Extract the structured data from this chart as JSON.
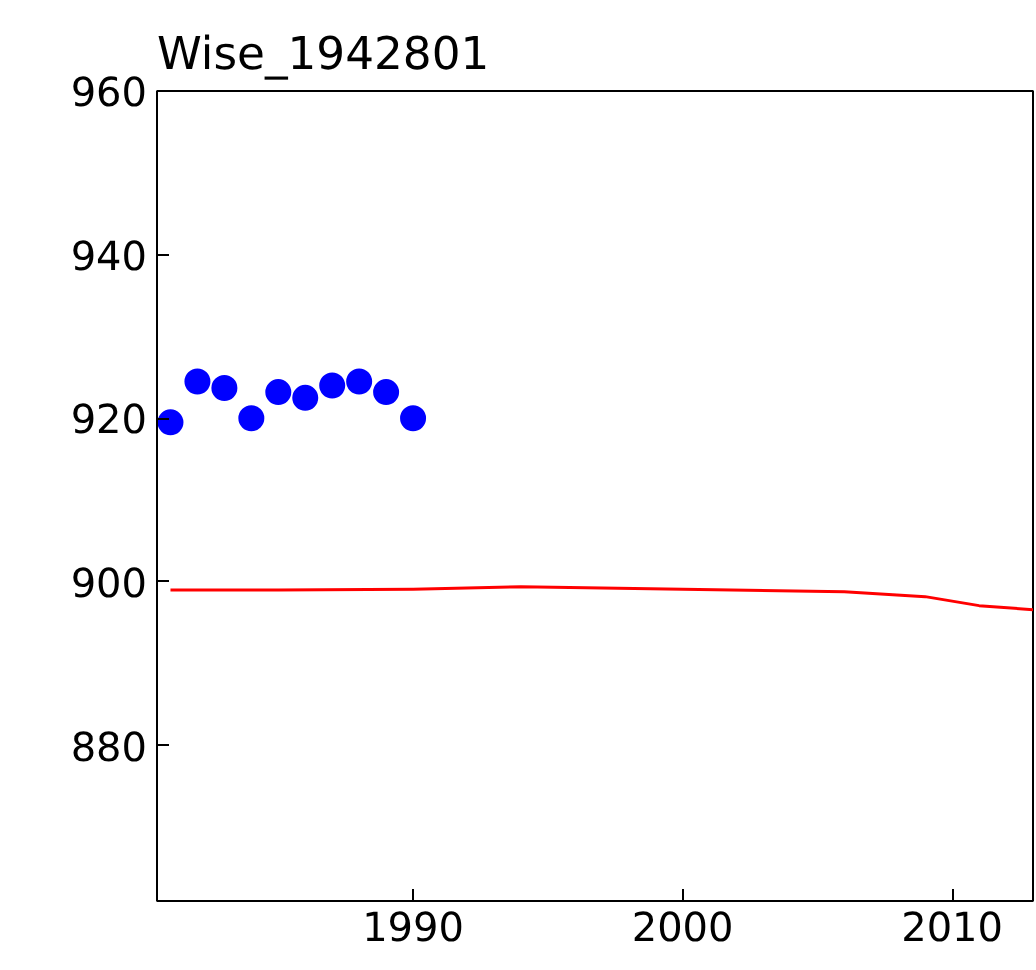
{
  "chart_data": {
    "type": "scatter",
    "title": "Wise_1942801",
    "xlim": [
      1980.5,
      2013
    ],
    "xticks": [
      1990,
      2000,
      2010
    ],
    "ylim": [
      861,
      960
    ],
    "yticks": [
      880,
      900,
      920,
      940,
      960
    ],
    "grid": false,
    "series": [
      {
        "color": "#0000ff",
        "marker": "circle",
        "x": [
          1981,
          1982,
          1983,
          1984,
          1985,
          1986,
          1987,
          1988,
          1989,
          1990
        ],
        "values": [
          919.5,
          924.5,
          923.7,
          920,
          923.2,
          922.5,
          924,
          924.5,
          923.2,
          920
        ]
      },
      {
        "type": "line",
        "color": "#ff0000",
        "line_style": "solid",
        "x": [
          1981,
          1985,
          1990,
          1994,
          2000,
          2006,
          2009,
          2011,
          2013
        ],
        "values": [
          899,
          899,
          899.1,
          899.4,
          899.1,
          898.8,
          898.2,
          897.1,
          896.6
        ]
      }
    ]
  }
}
